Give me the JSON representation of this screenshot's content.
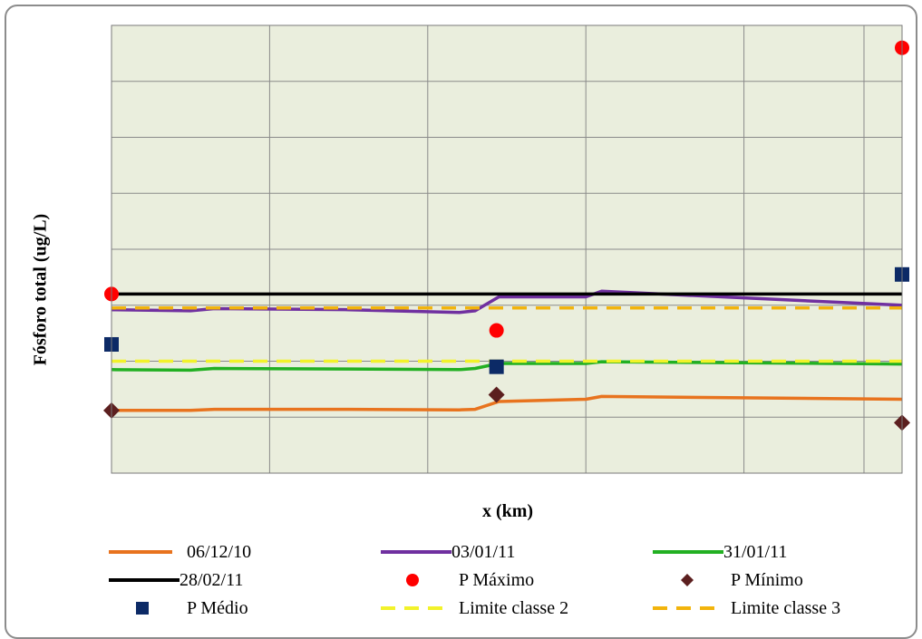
{
  "chart_data": {
    "type": "line",
    "xlabel": "x (km)",
    "ylabel": "Fósforo total (ug/L)",
    "grid": true,
    "legend_position": "bottom",
    "x_ticks_shown": false,
    "y_ticks_shown": false,
    "plot_background": "#eaeedd",
    "series": [
      {
        "name": "06/12/10",
        "kind": "line",
        "color": "#e8731e",
        "x": [
          0,
          0.1,
          0.13,
          0.3,
          0.44,
          0.46,
          0.49,
          0.6,
          0.62,
          1.0
        ],
        "y": [
          1.12,
          1.12,
          1.14,
          1.14,
          1.13,
          1.14,
          1.28,
          1.32,
          1.37,
          1.32
        ]
      },
      {
        "name": "03/01/11",
        "kind": "line",
        "color": "#7030a0",
        "x": [
          0,
          0.1,
          0.13,
          0.3,
          0.44,
          0.46,
          0.49,
          0.6,
          0.62,
          1.0
        ],
        "y": [
          2.92,
          2.9,
          2.94,
          2.92,
          2.87,
          2.9,
          3.15,
          3.15,
          3.25,
          3.0
        ]
      },
      {
        "name": "31/01/11",
        "kind": "line",
        "color": "#22b022",
        "x": [
          0,
          0.1,
          0.13,
          0.3,
          0.44,
          0.46,
          0.49,
          0.6,
          0.62,
          1.0
        ],
        "y": [
          1.85,
          1.84,
          1.87,
          1.86,
          1.85,
          1.87,
          1.96,
          1.96,
          1.99,
          1.95
        ]
      },
      {
        "name": "28/02/11",
        "kind": "line",
        "color": "#000000",
        "x": [
          0,
          0.4,
          1.0
        ],
        "y": [
          3.2,
          3.2,
          3.2
        ]
      },
      {
        "name": "P Máximo",
        "kind": "marker",
        "marker": "circle",
        "color": "#ff0000",
        "x": [
          0,
          0.487,
          1.0
        ],
        "y": [
          3.2,
          2.55,
          7.6
        ]
      },
      {
        "name": "P Mínimo",
        "kind": "marker",
        "marker": "diamond",
        "color": "#5c1f1f",
        "x": [
          0,
          0.487,
          1.0
        ],
        "y": [
          1.12,
          1.4,
          0.9
        ]
      },
      {
        "name": "P Médio",
        "kind": "marker",
        "marker": "square",
        "color": "#0c2a66",
        "x": [
          0,
          0.487,
          1.0
        ],
        "y": [
          2.3,
          1.9,
          3.55
        ]
      },
      {
        "name": "Limite classe 2",
        "kind": "line",
        "dash": true,
        "color": "#f2f22a",
        "x": [
          0,
          1.0
        ],
        "y": [
          2.0,
          2.0
        ]
      },
      {
        "name": "Limite classe 3",
        "kind": "line",
        "dash": true,
        "color": "#f2b40c",
        "x": [
          0,
          1.0
        ],
        "y": [
          2.95,
          2.95
        ]
      }
    ],
    "xlim": [
      0,
      1.0
    ],
    "ylim": [
      0,
      8
    ]
  }
}
